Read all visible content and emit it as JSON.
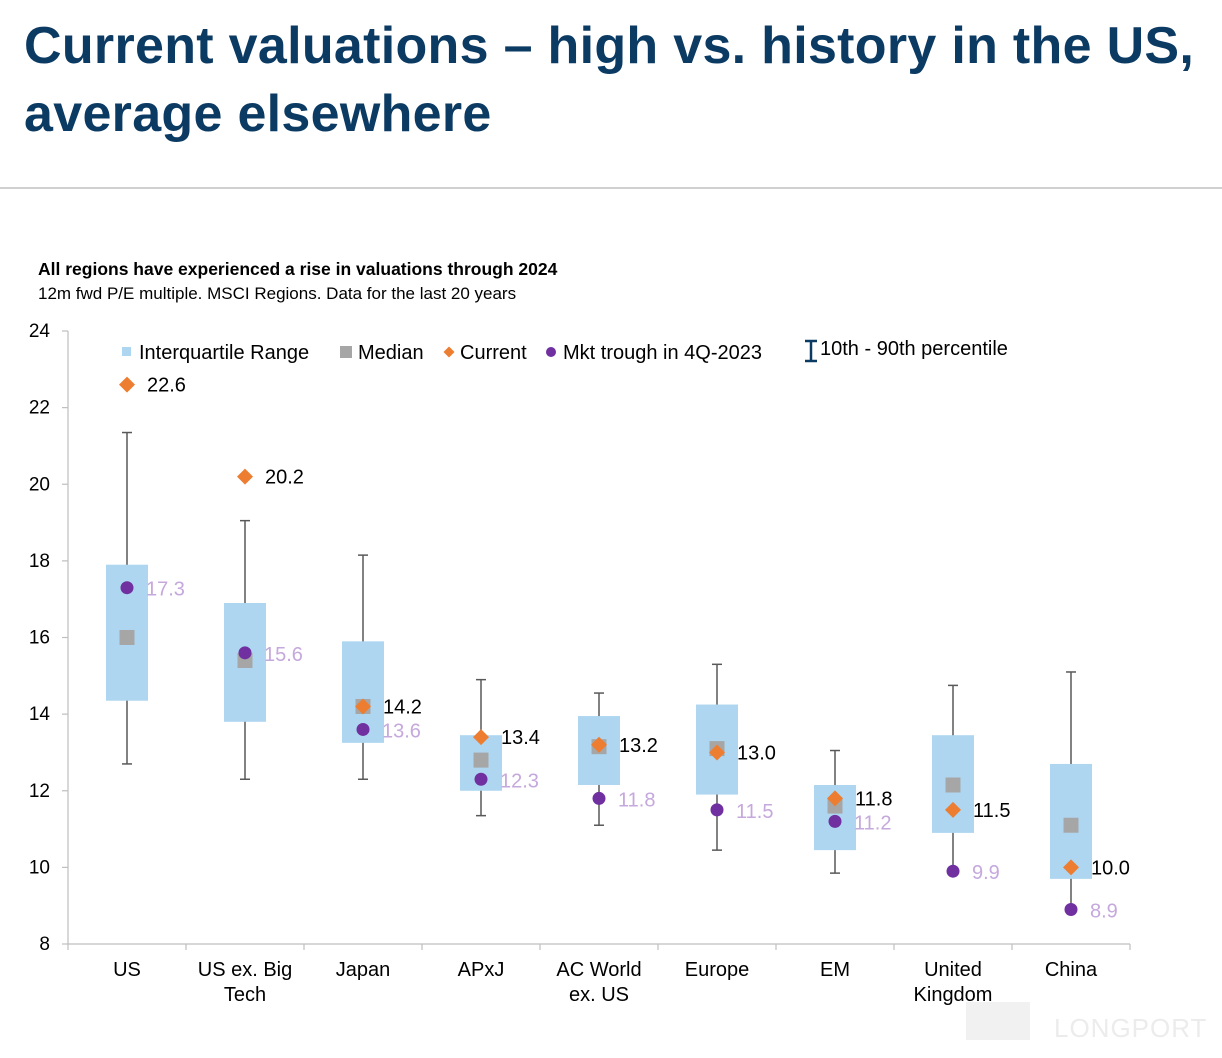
{
  "title": "Current valuations – high vs. history in the US, average elsewhere",
  "chart_heading": "All regions have experienced a rise in valuations through 2024",
  "chart_subheading": "12m fwd P/E multiple. MSCI Regions. Data for the last 20 years",
  "watermark": "LONGPORT",
  "colors": {
    "iqr": "#aed6f1",
    "median": "#a6a6a6",
    "current": "#ed7d31",
    "trough": "#7030a0",
    "trough_label": "#c5a8dc",
    "whisker": "#595959",
    "axis": "#bfbfbf",
    "title": "#0b3a63"
  },
  "chart_data": {
    "type": "box",
    "title": "All regions have experienced a rise in valuations through 2024",
    "subtitle": "12m fwd P/E multiple. MSCI Regions. Data for the last 20 years",
    "ylim": [
      8,
      24
    ],
    "yticks": [
      "8",
      "10",
      "12",
      "14",
      "16",
      "18",
      "20",
      "22",
      "24"
    ],
    "grid": false,
    "legend_position": "top",
    "legend": [
      {
        "label": "Interquartile Range",
        "marker": "square"
      },
      {
        "label": "Median",
        "marker": "square"
      },
      {
        "label": "Current",
        "marker": "diamond"
      },
      {
        "label": "Mkt trough in 4Q-2023",
        "marker": "circle"
      },
      {
        "label": "10th - 90th percentile",
        "marker": "whisker"
      }
    ],
    "categories": [
      {
        "name": "US",
        "label_lines": [
          "US"
        ],
        "p10": 12.7,
        "q1": 14.35,
        "median": 16.0,
        "q3": 17.9,
        "p90": 21.35,
        "current": 22.6,
        "trough": 17.3,
        "current_label": "22.6",
        "trough_label": "17.3"
      },
      {
        "name": "US ex. Big Tech",
        "label_lines": [
          "US ex. Big",
          "Tech"
        ],
        "p10": 12.3,
        "q1": 13.8,
        "median": 15.4,
        "q3": 16.9,
        "p90": 19.05,
        "current": 20.2,
        "trough": 15.6,
        "current_label": "20.2",
        "trough_label": "15.6"
      },
      {
        "name": "Japan",
        "label_lines": [
          "Japan"
        ],
        "p10": 12.3,
        "q1": 13.25,
        "median": 14.2,
        "q3": 15.9,
        "p90": 18.15,
        "current": 14.2,
        "trough": 13.6,
        "current_label": "14.2",
        "trough_label": "13.6"
      },
      {
        "name": "APxJ",
        "label_lines": [
          "APxJ"
        ],
        "p10": 11.35,
        "q1": 12.0,
        "median": 12.8,
        "q3": 13.45,
        "p90": 14.9,
        "current": 13.4,
        "trough": 12.3,
        "current_label": "13.4",
        "trough_label": "12.3"
      },
      {
        "name": "AC World ex. US",
        "label_lines": [
          "AC World",
          "ex. US"
        ],
        "p10": 11.1,
        "q1": 12.15,
        "median": 13.15,
        "q3": 13.95,
        "p90": 14.55,
        "current": 13.2,
        "trough": 11.8,
        "current_label": "13.2",
        "trough_label": "11.8"
      },
      {
        "name": "Europe",
        "label_lines": [
          "Europe"
        ],
        "p10": 10.45,
        "q1": 11.9,
        "median": 13.1,
        "q3": 14.25,
        "p90": 15.3,
        "current": 13.0,
        "trough": 11.5,
        "current_label": "13.0",
        "trough_label": "11.5"
      },
      {
        "name": "EM",
        "label_lines": [
          "EM"
        ],
        "p10": 9.85,
        "q1": 10.45,
        "median": 11.6,
        "q3": 12.15,
        "p90": 13.05,
        "current": 11.8,
        "trough": 11.2,
        "current_label": "11.8",
        "trough_label": "11.2"
      },
      {
        "name": "United Kingdom",
        "label_lines": [
          "United",
          "Kingdom"
        ],
        "p10": 9.9,
        "q1": 10.9,
        "median": 12.15,
        "q3": 13.45,
        "p90": 14.75,
        "current": 11.5,
        "trough": 9.9,
        "current_label": "11.5",
        "trough_label": "9.9"
      },
      {
        "name": "China",
        "label_lines": [
          "China"
        ],
        "p10": 8.9,
        "q1": 9.7,
        "median": 11.1,
        "q3": 12.7,
        "p90": 15.1,
        "current": 10.0,
        "trough": 8.9,
        "current_label": "10.0",
        "trough_label": "8.9"
      }
    ]
  }
}
